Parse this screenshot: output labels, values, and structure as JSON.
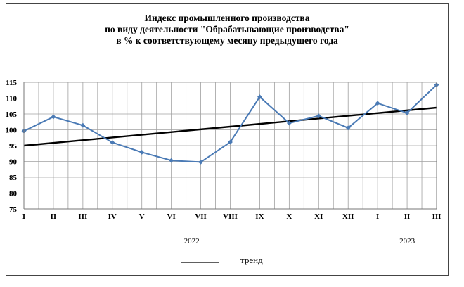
{
  "chart_data": {
    "type": "line",
    "title_lines": [
      "Индекс промышленного производства",
      "по виду деятельности \"Обрабатывающие производства\"",
      "в % к соответствующему месяцу предыдущего года"
    ],
    "categories": [
      "I",
      "II",
      "III",
      "IV",
      "V",
      "VI",
      "VII",
      "VIII",
      "IX",
      "X",
      "XI",
      "XII",
      "I",
      "II",
      "III"
    ],
    "year_labels": [
      "2022",
      "2023"
    ],
    "series": [
      {
        "values": [
          99.6,
          104.1,
          101.4,
          96.0,
          92.9,
          90.3,
          89.8,
          96.1,
          110.4,
          102.1,
          104.4,
          100.6,
          108.4,
          105.3,
          114.2
        ],
        "color": "#4a7ab5"
      }
    ],
    "trend": {
      "name": "тренд",
      "start": 95.0,
      "end": 107.0,
      "color": "#000000"
    },
    "yticks": [
      75,
      80,
      85,
      90,
      95,
      100,
      105,
      110,
      115
    ],
    "ylim": [
      75,
      115
    ],
    "grid": true,
    "legend_position": "bottom"
  }
}
